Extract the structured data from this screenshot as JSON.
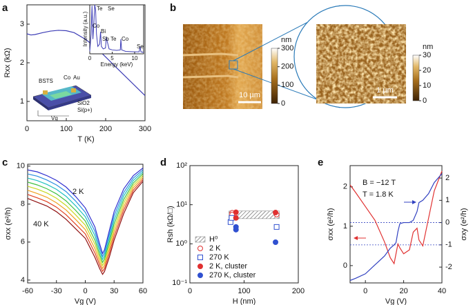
{
  "chart_data": [
    {
      "panel": "a",
      "type": "line",
      "xlabel": "T (K)",
      "ylabel": "Rxx (kΩ)",
      "x": [
        0,
        10,
        20,
        40,
        60,
        80,
        100,
        120,
        150,
        180,
        200,
        230,
        260,
        300
      ],
      "series": [
        {
          "color": "#3b3bb5",
          "values": [
            2.75,
            2.72,
            2.73,
            2.78,
            2.82,
            2.84,
            2.83,
            2.78,
            2.6,
            2.35,
            2.15,
            1.85,
            1.55,
            1.15
          ]
        }
      ],
      "xlim": [
        0,
        300
      ],
      "xticks": [
        0,
        100,
        200,
        300
      ],
      "ylim": [
        0.5,
        3.5
      ],
      "yticks": [
        1,
        2,
        3
      ],
      "inset": {
        "type": "line",
        "xlabel": "Energy (keV)",
        "ylabel": "Intensity (a.u.)",
        "color": "#3b3bb5",
        "x": [
          0,
          0.3,
          0.5,
          0.7,
          0.9,
          1.1,
          1.3,
          1.5,
          1.8,
          2.2,
          2.4,
          2.6,
          3.0,
          3.5,
          3.7,
          3.9,
          4.3,
          5,
          6,
          6.8,
          6.93,
          7.1,
          8,
          10,
          11,
          11.2,
          11.4,
          12
        ],
        "values": [
          5,
          40,
          98,
          30,
          60,
          100,
          90,
          40,
          15,
          20,
          45,
          15,
          10,
          12,
          35,
          25,
          10,
          8,
          7,
          8,
          30,
          8,
          5,
          4,
          4,
          15,
          4,
          3
        ],
        "xlim": [
          0,
          12
        ],
        "xticks": [
          0,
          5,
          10
        ],
        "ylim": [
          0,
          100
        ],
        "peak_labels": [
          "Te",
          "Se",
          "Co",
          "Bi",
          "Sb",
          "Te",
          "Co",
          "Se"
        ]
      },
      "schematic_labels": [
        "BSTS",
        "Co",
        "Au",
        "SiO2",
        "Si(p+)",
        "Vg"
      ]
    },
    {
      "panel": "b",
      "type": "image",
      "images": [
        {
          "colorbar_label": "nm",
          "clim": [
            0,
            300
          ],
          "cticks": [
            0,
            100,
            200,
            300
          ],
          "scalebar": "10 µm"
        },
        {
          "colorbar_label": "nm",
          "clim": [
            0,
            30
          ],
          "cticks": [
            0,
            10,
            20,
            30
          ],
          "scalebar": "1 µm"
        }
      ]
    },
    {
      "panel": "c",
      "type": "line",
      "xlabel": "Vg (V)",
      "ylabel": "σxx (e²/h)",
      "x": [
        -60,
        -50,
        -40,
        -30,
        -20,
        -10,
        0,
        10,
        15,
        18,
        20,
        25,
        30,
        40,
        50,
        60
      ],
      "series": [
        {
          "color": "#3030d0",
          "values": [
            9.8,
            9.7,
            9.5,
            9.25,
            8.9,
            8.4,
            7.8,
            6.8,
            5.9,
            5.4,
            5.6,
            6.6,
            7.6,
            8.8,
            9.5,
            9.9
          ]
        },
        {
          "color": "#2a8fe0",
          "values": [
            9.59,
            9.47,
            9.27,
            9.01,
            8.66,
            8.16,
            7.57,
            6.57,
            5.71,
            5.24,
            5.44,
            6.4,
            7.39,
            8.61,
            9.37,
            9.8
          ]
        },
        {
          "color": "#20c0c0",
          "values": [
            9.37,
            9.24,
            9.04,
            8.78,
            8.41,
            7.91,
            7.34,
            6.34,
            5.53,
            5.09,
            5.27,
            6.2,
            7.17,
            8.43,
            9.24,
            9.7
          ]
        },
        {
          "color": "#40c040",
          "values": [
            9.16,
            9.01,
            8.81,
            8.54,
            8.17,
            7.67,
            7.11,
            6.11,
            5.34,
            4.93,
            5.11,
            6.0,
            6.96,
            8.24,
            9.11,
            9.6
          ]
        },
        {
          "color": "#c8d820",
          "values": [
            8.94,
            8.79,
            8.59,
            8.31,
            7.93,
            7.43,
            6.89,
            5.89,
            5.16,
            4.77,
            4.94,
            5.8,
            6.74,
            8.06,
            8.99,
            9.5
          ]
        },
        {
          "color": "#f0a020",
          "values": [
            8.73,
            8.56,
            8.36,
            8.07,
            7.69,
            7.19,
            6.66,
            5.66,
            4.97,
            4.61,
            4.78,
            5.6,
            6.53,
            7.87,
            8.86,
            9.4
          ]
        },
        {
          "color": "#e04020",
          "values": [
            8.51,
            8.33,
            8.13,
            7.84,
            7.44,
            6.94,
            6.43,
            5.43,
            4.79,
            4.46,
            4.61,
            5.4,
            6.31,
            7.69,
            8.73,
            9.3
          ]
        },
        {
          "color": "#901010",
          "values": [
            8.3,
            8.1,
            7.9,
            7.6,
            7.2,
            6.7,
            6.2,
            5.2,
            4.6,
            4.3,
            4.45,
            5.2,
            6.1,
            7.5,
            8.6,
            9.2
          ]
        }
      ],
      "xlim": [
        -60,
        60
      ],
      "xticks": [
        -60,
        -30,
        0,
        30,
        60
      ],
      "ylim": [
        3.85,
        10.1
      ],
      "yticks": [
        4,
        6,
        8,
        10
      ],
      "annotations": [
        "2 K",
        "40 K"
      ]
    },
    {
      "panel": "d",
      "type": "scatter",
      "xlabel": "H (nm)",
      "ylabel": "Rsh (kΩ/□)",
      "ylog": true,
      "band": {
        "name": "H⁰",
        "x": [
          72,
          165
        ],
        "values": [
          4.4,
          6.9
        ]
      },
      "series": [
        {
          "name": "2 K",
          "color": "#e03030",
          "marker": "open-circle",
          "x": [
            78,
            78,
            160
          ],
          "values": [
            6.2,
            5.6,
            5.6
          ]
        },
        {
          "name": "270 K",
          "color": "#3050d0",
          "marker": "open-square",
          "x": [
            75,
            77,
            160
          ],
          "values": [
            3.6,
            4.6,
            2.7
          ]
        },
        {
          "name": "2 K, cluster",
          "color": "#e03030",
          "marker": "filled-circle",
          "x": [
            85,
            85,
            158
          ],
          "values": [
            6.4,
            4.6,
            6.3
          ]
        },
        {
          "name": "270 K, cluster",
          "color": "#3050d0",
          "marker": "filled-circle",
          "x": [
            85,
            85,
            158
          ],
          "values": [
            2.7,
            2.3,
            1.1
          ]
        }
      ],
      "xlim": [
        0,
        200
      ],
      "xticks": [
        0,
        100,
        200
      ],
      "ylim": [
        0.1,
        100
      ],
      "yticks": [
        {
          "value": 0.1,
          "label": "10⁻¹"
        },
        {
          "value": 1,
          "label": "10⁰"
        },
        {
          "value": 10,
          "label": "10¹"
        },
        {
          "value": 100,
          "label": "10²"
        }
      ],
      "legend": "lower left"
    },
    {
      "panel": "e",
      "type": "line",
      "xlabel": "Vg (V)",
      "ylabel": "σxx (e²/h)",
      "y2label": "σxy (e²/h)",
      "x": [
        -8,
        -5,
        0,
        5,
        10,
        13,
        15,
        16,
        17,
        18,
        20,
        23,
        25,
        27,
        28,
        30,
        33,
        36,
        40
      ],
      "series": [
        {
          "color": "#e03030",
          "values": [
            2.05,
            1.85,
            1.5,
            1.15,
            0.6,
            0.2,
            0.05,
            0.3,
            0.55,
            0.45,
            0.3,
            0.4,
            0.85,
            0.95,
            0.65,
            0.5,
            1.2,
            1.9,
            2.4
          ]
        },
        {
          "color": "#3040c0",
          "axis": "y2",
          "values": [
            -2.6,
            -2.5,
            -2.3,
            -1.9,
            -1.5,
            -1.15,
            -1.0,
            -0.9,
            -0.4,
            -0.05,
            0,
            0,
            0.1,
            0.5,
            0.9,
            1.0,
            1.3,
            1.8,
            2.2
          ]
        }
      ],
      "xlim": [
        -8,
        40
      ],
      "xticks": [
        0,
        20,
        40
      ],
      "ylim": [
        -0.44,
        2.54
      ],
      "yticks": [
        0,
        1,
        2
      ],
      "y2lim": [
        -2.71,
        2.56
      ],
      "y2ticks": [
        -2,
        -1,
        0,
        1,
        2
      ],
      "y2_reference_lines": [
        0,
        -1
      ],
      "annotations": [
        "B = −12 T",
        "T = 1.8 K"
      ]
    }
  ]
}
